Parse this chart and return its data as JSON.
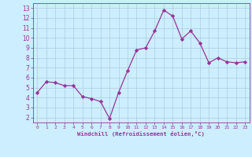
{
  "x": [
    0,
    1,
    2,
    3,
    4,
    5,
    6,
    7,
    8,
    9,
    10,
    11,
    12,
    13,
    14,
    15,
    16,
    17,
    18,
    19,
    20,
    21,
    22,
    23
  ],
  "y": [
    4.5,
    5.6,
    5.5,
    5.2,
    5.2,
    4.1,
    3.9,
    3.6,
    1.9,
    4.5,
    6.7,
    8.8,
    9.0,
    10.7,
    12.8,
    12.2,
    9.9,
    10.7,
    9.5,
    7.5,
    8.0,
    7.6,
    7.5,
    7.6
  ],
  "line_color": "#993399",
  "marker": "D",
  "marker_size": 2.2,
  "bg_color": "#cceeff",
  "grid_color": "#aaccdd",
  "xlabel": "Windchill (Refroidissement éolien,°C)",
  "xlabel_color": "#993399",
  "tick_color": "#993399",
  "xlim": [
    -0.5,
    23.5
  ],
  "ylim": [
    1.5,
    13.5
  ],
  "yticks": [
    2,
    3,
    4,
    5,
    6,
    7,
    8,
    9,
    10,
    11,
    12,
    13
  ],
  "xticks": [
    0,
    1,
    2,
    3,
    4,
    5,
    6,
    7,
    8,
    9,
    10,
    11,
    12,
    13,
    14,
    15,
    16,
    17,
    18,
    19,
    20,
    21,
    22,
    23
  ],
  "spine_color": "#993399",
  "line_width": 0.9
}
